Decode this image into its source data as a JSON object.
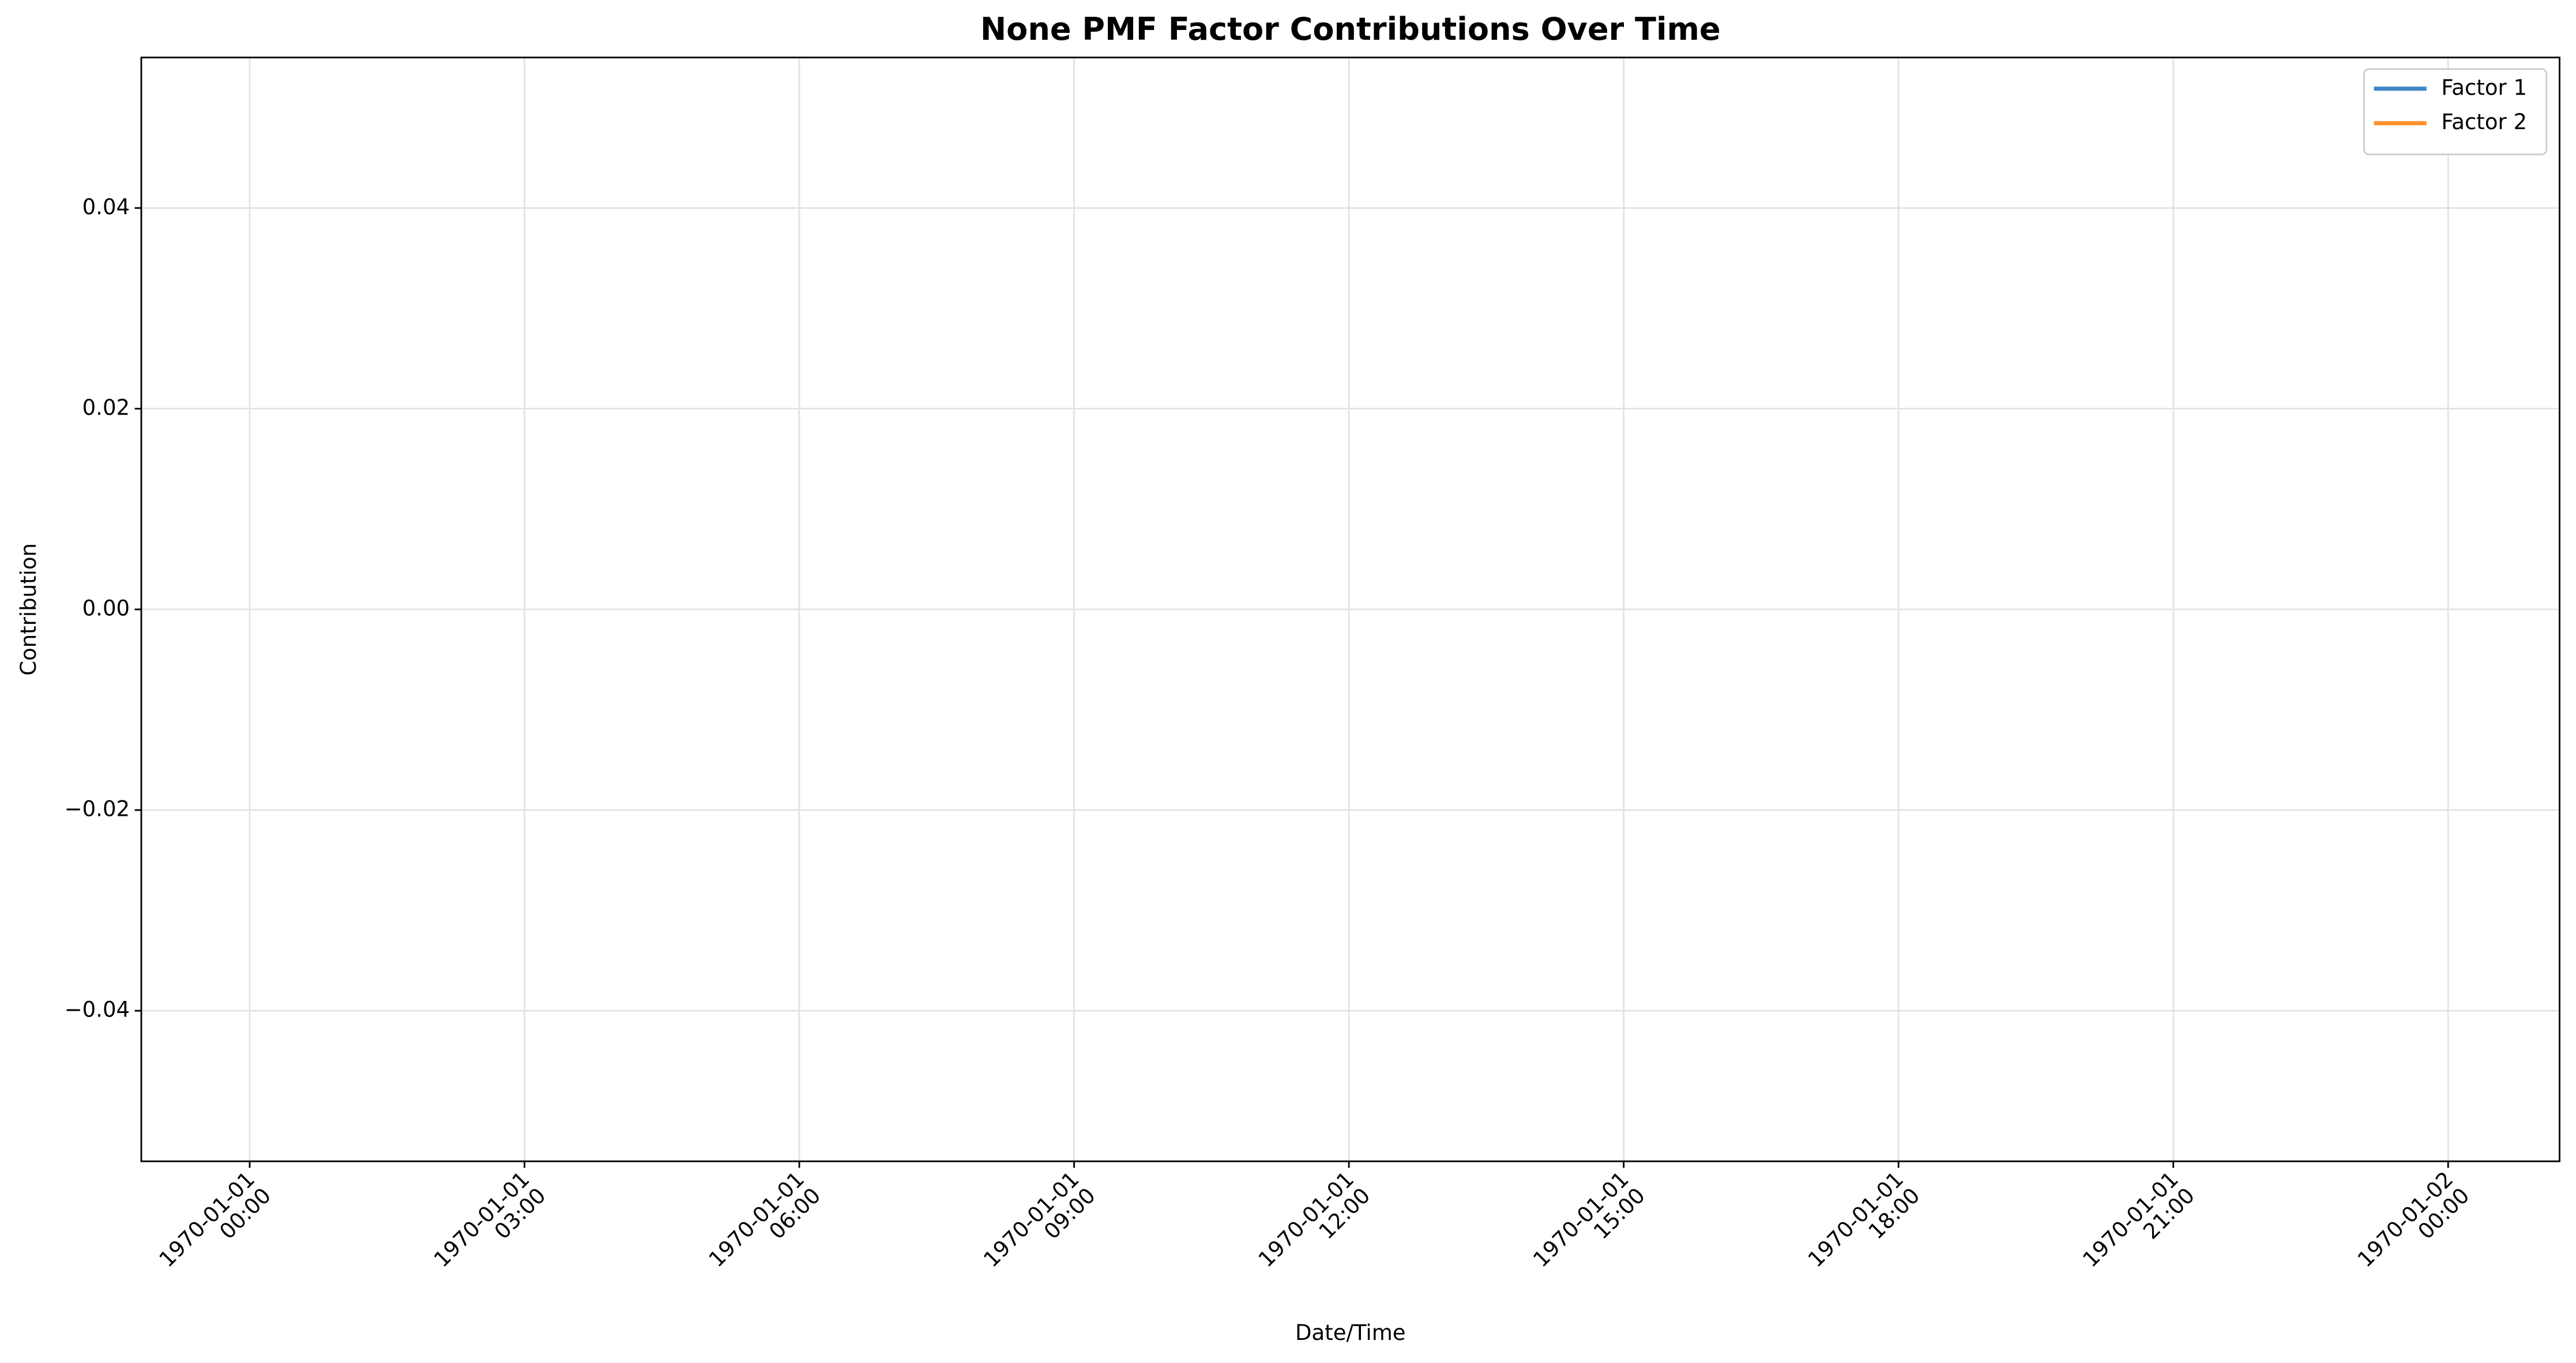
{
  "chart_data": {
    "type": "line",
    "title": "None PMF Factor Contributions Over Time",
    "x_label": "Date/Time",
    "y_label": "Contribution",
    "x": [],
    "series": [
      {
        "name": "Factor 1",
        "color": "#3d86c6",
        "values": []
      },
      {
        "name": "Factor 2",
        "color": "#ff912f",
        "values": []
      }
    ],
    "xlim": [
      "1969-12-31 22:49",
      "1970-01-02 01:13"
    ],
    "xticks": [
      {
        "value": "1970-01-01 00:00",
        "label": [
          "1970-01-01",
          "00:00"
        ]
      },
      {
        "value": "1970-01-01 03:00",
        "label": [
          "1970-01-01",
          "03:00"
        ]
      },
      {
        "value": "1970-01-01 06:00",
        "label": [
          "1970-01-01",
          "06:00"
        ]
      },
      {
        "value": "1970-01-01 09:00",
        "label": [
          "1970-01-01",
          "09:00"
        ]
      },
      {
        "value": "1970-01-01 12:00",
        "label": [
          "1970-01-01",
          "12:00"
        ]
      },
      {
        "value": "1970-01-01 15:00",
        "label": [
          "1970-01-01",
          "15:00"
        ]
      },
      {
        "value": "1970-01-01 18:00",
        "label": [
          "1970-01-01",
          "18:00"
        ]
      },
      {
        "value": "1970-01-01 21:00",
        "label": [
          "1970-01-01",
          "21:00"
        ]
      },
      {
        "value": "1970-01-02 00:00",
        "label": [
          "1970-01-02",
          "00:00"
        ]
      }
    ],
    "ylim": [
      -0.055,
      0.055
    ],
    "yticks": [
      {
        "value": -0.04,
        "label": "−0.04"
      },
      {
        "value": -0.02,
        "label": "−0.02"
      },
      {
        "value": 0,
        "label": "0.00"
      },
      {
        "value": 0.02,
        "label": "0.02"
      },
      {
        "value": 0.04,
        "label": "0.04"
      }
    ],
    "grid": true,
    "legend": "upper right"
  }
}
